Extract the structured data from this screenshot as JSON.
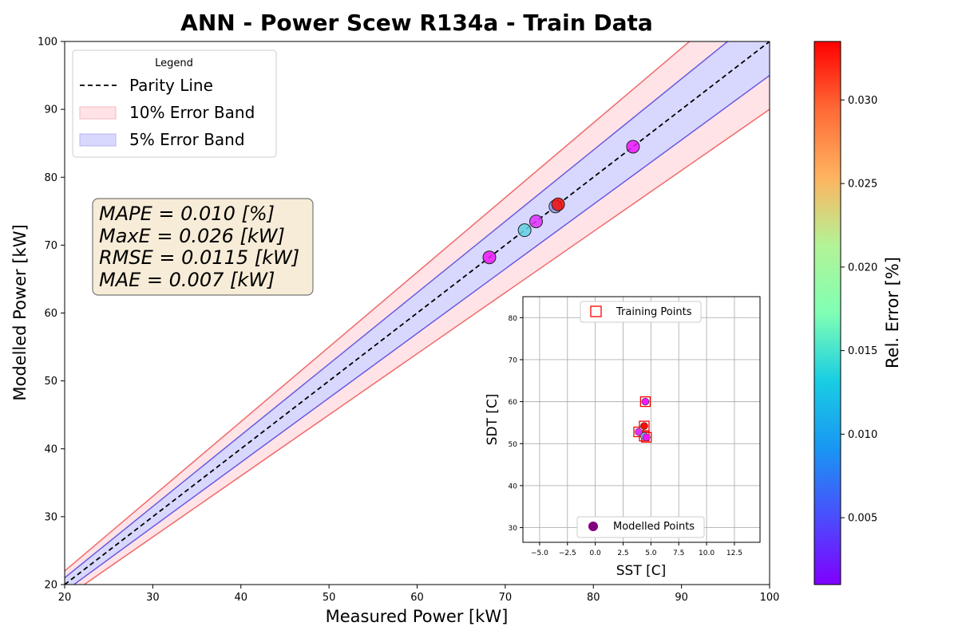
{
  "chart_data": [
    {
      "type": "scatter",
      "title": "ANN - Power Scew R134a - Train Data",
      "xlabel": "Measured Power [kW]",
      "ylabel": "Modelled Power [kW]",
      "xlim": [
        20,
        100
      ],
      "ylim": [
        20,
        100
      ],
      "xticks": [
        20,
        30,
        40,
        50,
        60,
        70,
        80,
        90,
        100
      ],
      "yticks": [
        20,
        30,
        40,
        50,
        60,
        70,
        80,
        90,
        100
      ],
      "grid": false,
      "legend": {
        "title": "Legend",
        "placement": "upper-left",
        "entries": [
          "Parity Line",
          "10% Error Band",
          "5% Error Band"
        ]
      },
      "error_bands_percent": [
        10,
        5
      ],
      "metrics": [
        "MAPE = 0.010 [%]",
        "MaxE = 0.026 [kW]",
        "RMSE = 0.0115 [kW]",
        "MAE = 0.007 [kW]"
      ],
      "points": [
        {
          "x": 68.2,
          "y": 68.2,
          "rel_error": 0.002
        },
        {
          "x": 72.2,
          "y": 72.2,
          "rel_error": 0.011
        },
        {
          "x": 73.5,
          "y": 73.5,
          "rel_error": 0.003
        },
        {
          "x": 75.7,
          "y": 75.7,
          "rel_error": 0.008
        },
        {
          "x": 76.0,
          "y": 76.0,
          "rel_error": 0.033
        },
        {
          "x": 84.5,
          "y": 84.5,
          "rel_error": 0.002
        }
      ],
      "colorbar": {
        "label": "Rel. Error [%]",
        "min": 0.001,
        "max": 0.0335,
        "ticks": [
          0.005,
          0.01,
          0.015,
          0.02,
          0.025,
          0.03
        ],
        "tick_labels": [
          "0.005",
          "0.010",
          "0.015",
          "0.020",
          "0.025",
          "0.030"
        ],
        "colormap": "rainbow"
      }
    },
    {
      "type": "scatter",
      "title": "",
      "xlabel": "SST [C]",
      "ylabel": "SDT [C]",
      "xlim": [
        -6.5,
        14.8
      ],
      "ylim": [
        26.5,
        85
      ],
      "xticks": [
        -5.0,
        -2.5,
        0.0,
        2.5,
        5.0,
        7.5,
        10.0,
        12.5
      ],
      "xtick_labels": [
        "−5.0",
        "−2.5",
        "0.0",
        "2.5",
        "5.0",
        "7.5",
        "10.0",
        "12.5"
      ],
      "yticks": [
        30,
        40,
        50,
        60,
        70,
        80
      ],
      "grid": true,
      "legend_training": {
        "placement": "upper-center",
        "label": "Training Points"
      },
      "legend_modelled": {
        "placement": "lower-center",
        "label": "Modelled Points"
      },
      "training_points": [
        {
          "x": 4.5,
          "y": 60.0
        },
        {
          "x": 4.4,
          "y": 54.2
        },
        {
          "x": 3.9,
          "y": 52.8
        },
        {
          "x": 4.4,
          "y": 51.8
        },
        {
          "x": 4.6,
          "y": 51.5
        }
      ],
      "modelled_points": [
        {
          "x": 4.5,
          "y": 60.0,
          "rel_error": 0.002
        },
        {
          "x": 4.4,
          "y": 54.2,
          "rel_error": 0.033
        },
        {
          "x": 3.9,
          "y": 52.8,
          "rel_error": 0.003
        },
        {
          "x": 4.4,
          "y": 51.8,
          "rel_error": 0.008
        },
        {
          "x": 4.6,
          "y": 51.5,
          "rel_error": 0.002
        }
      ]
    }
  ],
  "colors": {
    "band10_fill": "#ffe3e6",
    "band10_edge": "#f06a6a",
    "band5_fill": "#d8d8ff",
    "band5_edge": "#6a5ae0",
    "parity": "#000000",
    "metrics_box_fill": "#f7ecd7",
    "training_marker": "#ff0000",
    "modelled_legend_marker": "#800080",
    "grid": "#b0b0b0"
  }
}
